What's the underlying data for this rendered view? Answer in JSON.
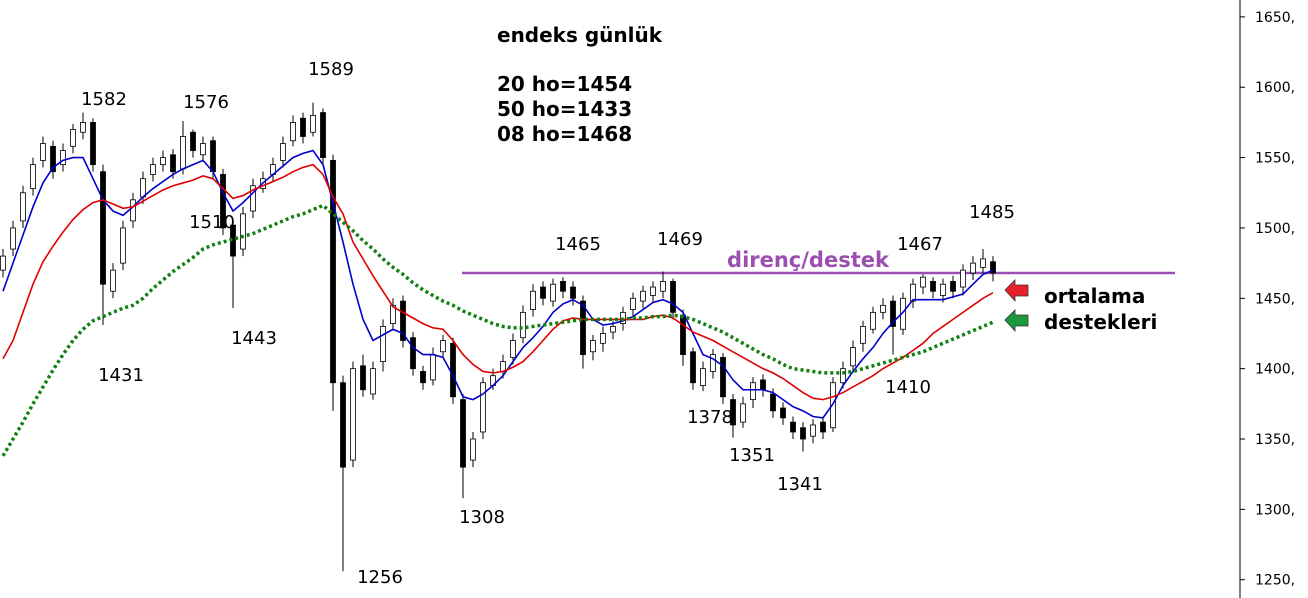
{
  "chart_data": {
    "type": "candlestick",
    "title": "endeks günlük",
    "subtitle_lines": [
      "20 ho=1454",
      "50 ho=1433",
      "08 ho=1468"
    ],
    "categories": [
      null,
      null,
      null,
      null,
      null,
      null,
      null,
      null,
      null,
      null,
      null,
      null,
      null,
      null,
      null,
      null,
      null,
      null,
      null,
      null,
      null,
      null,
      null,
      null,
      null,
      null,
      null,
      null,
      null,
      null,
      null,
      null,
      null,
      null,
      null,
      null,
      null,
      null,
      null,
      null,
      null,
      null,
      null,
      null,
      null,
      null,
      null,
      null,
      null,
      null,
      null,
      null,
      null,
      null,
      null,
      null,
      null,
      null,
      null,
      null,
      null,
      null,
      null,
      null,
      null,
      null,
      null,
      null,
      null,
      null,
      null,
      null,
      null,
      null,
      null,
      null,
      null,
      null,
      null,
      null,
      null,
      null,
      null,
      null,
      null,
      null,
      null,
      null,
      null,
      null,
      null,
      null,
      null,
      null,
      null,
      null,
      null,
      null,
      null,
      null
    ],
    "open": [
      1470,
      1485,
      1505,
      1528,
      1548,
      1558,
      1545,
      1558,
      1568,
      1575,
      1540,
      1455,
      1475,
      1505,
      1522,
      1538,
      1545,
      1552,
      1542,
      1568,
      1552,
      1562,
      1538,
      1502,
      1485,
      1512,
      1528,
      1538,
      1548,
      1562,
      1578,
      1568,
      1582,
      1548,
      1390,
      1335,
      1402,
      1382,
      1405,
      1432,
      1448,
      1422,
      1398,
      1392,
      1412,
      1418,
      1378,
      1335,
      1355,
      1388,
      1398,
      1408,
      1422,
      1442,
      1458,
      1448,
      1462,
      1458,
      1448,
      1412,
      1418,
      1426,
      1432,
      1442,
      1448,
      1452,
      1455,
      1462,
      1438,
      1412,
      1388,
      1398,
      1408,
      1378,
      1362,
      1378,
      1392,
      1382,
      1372,
      1362,
      1358,
      1352,
      1362,
      1358,
      1390,
      1402,
      1418,
      1428,
      1440,
      1448,
      1428,
      1448,
      1458,
      1462,
      1452,
      1462,
      1458,
      1468,
      1472,
      1476
    ],
    "high": [
      1485,
      1505,
      1530,
      1550,
      1565,
      1562,
      1560,
      1574,
      1582,
      1578,
      1545,
      1475,
      1505,
      1525,
      1540,
      1550,
      1555,
      1556,
      1576,
      1570,
      1565,
      1565,
      1542,
      1505,
      1515,
      1535,
      1540,
      1550,
      1565,
      1580,
      1582,
      1589,
      1585,
      1552,
      1395,
      1405,
      1410,
      1405,
      1435,
      1450,
      1452,
      1426,
      1402,
      1415,
      1424,
      1422,
      1382,
      1355,
      1394,
      1400,
      1410,
      1425,
      1445,
      1460,
      1462,
      1464,
      1465,
      1462,
      1452,
      1424,
      1430,
      1434,
      1444,
      1454,
      1459,
      1462,
      1469,
      1464,
      1442,
      1415,
      1405,
      1414,
      1411,
      1382,
      1380,
      1394,
      1396,
      1386,
      1376,
      1366,
      1362,
      1364,
      1366,
      1394,
      1405,
      1420,
      1434,
      1444,
      1450,
      1452,
      1454,
      1464,
      1467,
      1465,
      1464,
      1466,
      1474,
      1480,
      1485,
      1480
    ],
    "low": [
      1465,
      1480,
      1500,
      1523,
      1543,
      1535,
      1540,
      1553,
      1563,
      1540,
      1431,
      1450,
      1470,
      1500,
      1517,
      1533,
      1540,
      1535,
      1538,
      1550,
      1547,
      1535,
      1495,
      1443,
      1480,
      1507,
      1525,
      1533,
      1543,
      1558,
      1560,
      1565,
      1545,
      1370,
      1256,
      1330,
      1380,
      1378,
      1398,
      1427,
      1415,
      1395,
      1385,
      1388,
      1408,
      1375,
      1308,
      1330,
      1350,
      1385,
      1393,
      1403,
      1418,
      1437,
      1445,
      1444,
      1450,
      1445,
      1400,
      1406,
      1412,
      1421,
      1427,
      1437,
      1443,
      1447,
      1450,
      1435,
      1402,
      1385,
      1384,
      1393,
      1375,
      1351,
      1358,
      1372,
      1380,
      1365,
      1360,
      1350,
      1341,
      1347,
      1350,
      1355,
      1386,
      1398,
      1412,
      1425,
      1435,
      1410,
      1424,
      1443,
      1453,
      1450,
      1447,
      1450,
      1452,
      1463,
      1468,
      1462
    ],
    "close": [
      1480,
      1500,
      1525,
      1545,
      1560,
      1540,
      1555,
      1570,
      1575,
      1545,
      1460,
      1470,
      1500,
      1520,
      1535,
      1545,
      1550,
      1540,
      1565,
      1555,
      1560,
      1540,
      1500,
      1480,
      1510,
      1530,
      1535,
      1545,
      1560,
      1575,
      1565,
      1580,
      1550,
      1390,
      1330,
      1400,
      1385,
      1400,
      1430,
      1445,
      1420,
      1400,
      1390,
      1410,
      1420,
      1380,
      1330,
      1350,
      1390,
      1395,
      1405,
      1420,
      1440,
      1455,
      1450,
      1460,
      1455,
      1450,
      1410,
      1420,
      1425,
      1430,
      1440,
      1450,
      1455,
      1458,
      1462,
      1440,
      1410,
      1390,
      1400,
      1410,
      1380,
      1360,
      1375,
      1390,
      1385,
      1370,
      1365,
      1355,
      1350,
      1360,
      1355,
      1390,
      1400,
      1415,
      1430,
      1440,
      1445,
      1430,
      1450,
      1460,
      1465,
      1455,
      1460,
      1455,
      1470,
      1475,
      1478,
      1468
    ],
    "up_color": "#ffffff",
    "down_color": "#000000",
    "series": [
      {
        "color": "#0000cc",
        "style": "solid",
        "values": [
          1455,
          1475,
          1495,
          1515,
          1532,
          1543,
          1548,
          1550,
          1550,
          1535,
          1520,
          1512,
          1509,
          1515,
          1522,
          1528,
          1533,
          1538,
          1542,
          1545,
          1548,
          1540,
          1525,
          1512,
          1518,
          1525,
          1532,
          1538,
          1544,
          1550,
          1553,
          1555,
          1545,
          1518,
          1490,
          1460,
          1435,
          1420,
          1424,
          1428,
          1425,
          1415,
          1410,
          1410,
          1408,
          1395,
          1380,
          1378,
          1382,
          1388,
          1395,
          1405,
          1415,
          1422,
          1430,
          1440,
          1446,
          1449,
          1445,
          1435,
          1431,
          1432,
          1434,
          1437,
          1442,
          1447,
          1449,
          1446,
          1440,
          1425,
          1410,
          1407,
          1402,
          1392,
          1385,
          1385,
          1385,
          1383,
          1378,
          1373,
          1370,
          1366,
          1365,
          1375,
          1388,
          1398,
          1407,
          1415,
          1425,
          1433,
          1440,
          1449,
          1449,
          1449,
          1449,
          1451,
          1453,
          1460,
          1467,
          1470
        ]
      },
      {
        "color": "#e00000",
        "style": "solid",
        "values": [
          1407,
          1420,
          1440,
          1460,
          1476,
          1487,
          1497,
          1506,
          1513,
          1518,
          1520,
          1517,
          1514,
          1515,
          1519,
          1523,
          1527,
          1530,
          1532,
          1534,
          1537,
          1535,
          1528,
          1521,
          1523,
          1527,
          1530,
          1533,
          1536,
          1540,
          1543,
          1545,
          1538,
          1522,
          1510,
          1490,
          1478,
          1466,
          1455,
          1444,
          1440,
          1436,
          1432,
          1429,
          1428,
          1420,
          1410,
          1403,
          1398,
          1397,
          1398,
          1401,
          1405,
          1412,
          1420,
          1428,
          1434,
          1436,
          1435,
          1435,
          1435,
          1435,
          1435,
          1435,
          1435,
          1437,
          1438,
          1436,
          1431,
          1426,
          1423,
          1420,
          1416,
          1412,
          1408,
          1404,
          1400,
          1397,
          1393,
          1388,
          1383,
          1379,
          1378,
          1380,
          1383,
          1387,
          1391,
          1395,
          1400,
          1404,
          1408,
          1413,
          1418,
          1425,
          1430,
          1435,
          1440,
          1445,
          1450,
          1454
        ]
      },
      {
        "color": "#108010",
        "style": "dotted",
        "values": [
          1338,
          1350,
          1362,
          1375,
          1387,
          1399,
          1410,
          1420,
          1428,
          1434,
          1437,
          1440,
          1443,
          1445,
          1450,
          1457,
          1463,
          1469,
          1474,
          1479,
          1485,
          1488,
          1490,
          1492,
          1494,
          1496,
          1499,
          1502,
          1505,
          1508,
          1510,
          1513,
          1516,
          1510,
          1504,
          1498,
          1491,
          1485,
          1478,
          1472,
          1467,
          1461,
          1456,
          1452,
          1448,
          1445,
          1441,
          1438,
          1435,
          1432,
          1430,
          1429,
          1429,
          1430,
          1431,
          1432,
          1433,
          1434,
          1435,
          1435,
          1435,
          1435,
          1435,
          1436,
          1436,
          1437,
          1437,
          1438,
          1437,
          1435,
          1432,
          1429,
          1426,
          1422,
          1418,
          1414,
          1410,
          1407,
          1403,
          1400,
          1399,
          1398,
          1397,
          1397,
          1397,
          1398,
          1400,
          1402,
          1404,
          1406,
          1408,
          1410,
          1412,
          1415,
          1418,
          1421,
          1424,
          1427,
          1430,
          1433
        ]
      }
    ],
    "level_line": {
      "value": 1468,
      "label": "direnç/destek",
      "color": "#9b4fb0"
    },
    "side_note": [
      "ortalama",
      "destekleri"
    ],
    "annotations": [
      "1582",
      "1576",
      "1589",
      "1431",
      "1510",
      "1443",
      "1256",
      "1308",
      "1465",
      "1469",
      "1378",
      "1351",
      "1341",
      "1467",
      "1410",
      "1485"
    ],
    "ylim": [
      1237,
      1662
    ],
    "yticks": [
      {
        "value": 1250,
        "label": "1250,"
      },
      {
        "value": 1300,
        "label": "1300,"
      },
      {
        "value": 1350,
        "label": "1350,"
      },
      {
        "value": 1400,
        "label": "1400,"
      },
      {
        "value": 1450,
        "label": "1450,"
      },
      {
        "value": 1500,
        "label": "1500,"
      },
      {
        "value": 1550,
        "label": "1550,"
      },
      {
        "value": 1600,
        "label": "1600,"
      },
      {
        "value": 1650,
        "label": "1650,"
      }
    ]
  }
}
